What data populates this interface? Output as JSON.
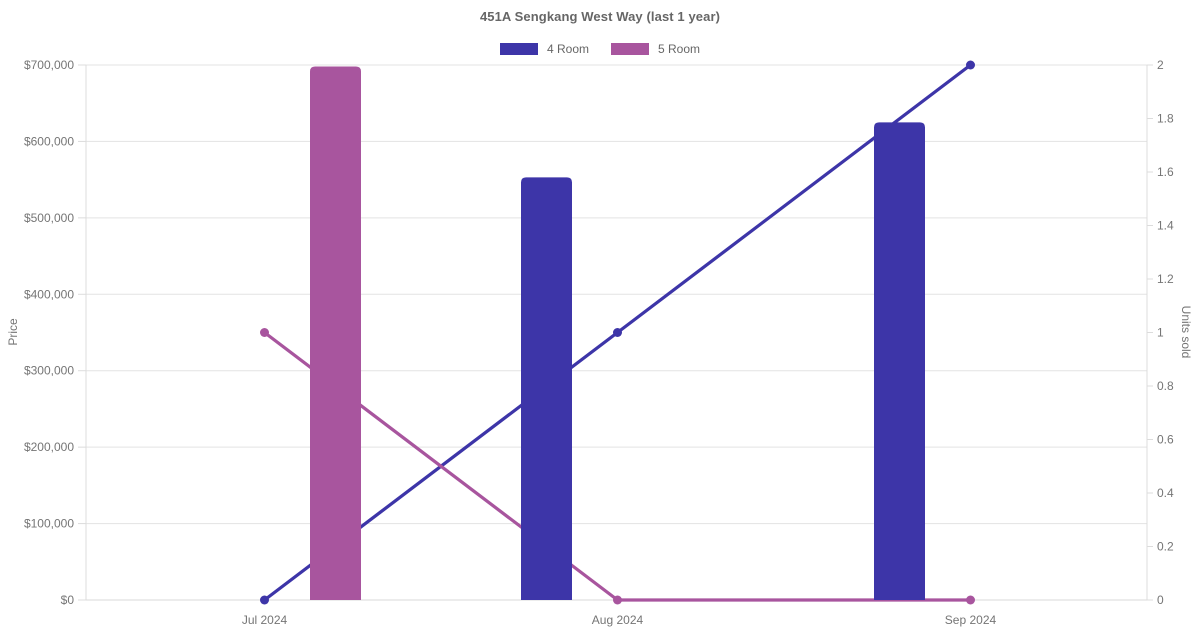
{
  "chart_data": {
    "type": "bar",
    "subtype": "combo-bar-line-dual-axis",
    "title": "451A Sengkang West Way (last 1 year)",
    "categories": [
      "Jul 2024",
      "Aug 2024",
      "Sep 2024"
    ],
    "series": [
      {
        "name": "4 Room",
        "kind": "bar",
        "axis": "left",
        "color": "#3d35a8",
        "values": [
          null,
          553000,
          625000
        ]
      },
      {
        "name": "5 Room",
        "kind": "bar",
        "axis": "left",
        "color": "#a8559e",
        "values": [
          698000,
          null,
          null
        ]
      },
      {
        "name": "4 Room",
        "kind": "line",
        "axis": "right",
        "color": "#3d35a8",
        "values": [
          0,
          1,
          2
        ]
      },
      {
        "name": "5 Room",
        "kind": "line",
        "axis": "right",
        "color": "#a8559e",
        "values": [
          1,
          0,
          0
        ]
      }
    ],
    "left_axis": {
      "label": "Price",
      "min": 0,
      "max": 700000,
      "tick_step": 100000,
      "tick_labels": [
        "$0",
        "$100,000",
        "$200,000",
        "$300,000",
        "$400,000",
        "$500,000",
        "$600,000",
        "$700,000"
      ]
    },
    "right_axis": {
      "label": "Units sold",
      "min": 0,
      "max": 2,
      "tick_step": 0.2,
      "tick_labels": [
        "0",
        "0.2",
        "0.4",
        "0.6",
        "0.8",
        "1",
        "1.2",
        "1.4",
        "1.6",
        "1.8",
        "2"
      ]
    },
    "legend": [
      {
        "label": "4 Room",
        "color": "#3d35a8"
      },
      {
        "label": "5 Room",
        "color": "#a8559e"
      }
    ],
    "legend_position": "top",
    "grid": "horizontal",
    "colors": {
      "gridline": "#e3e3e3",
      "axis_border": "#dcdcdc",
      "tick_text": "#757575",
      "title_text": "#666666",
      "background": "#ffffff"
    }
  }
}
